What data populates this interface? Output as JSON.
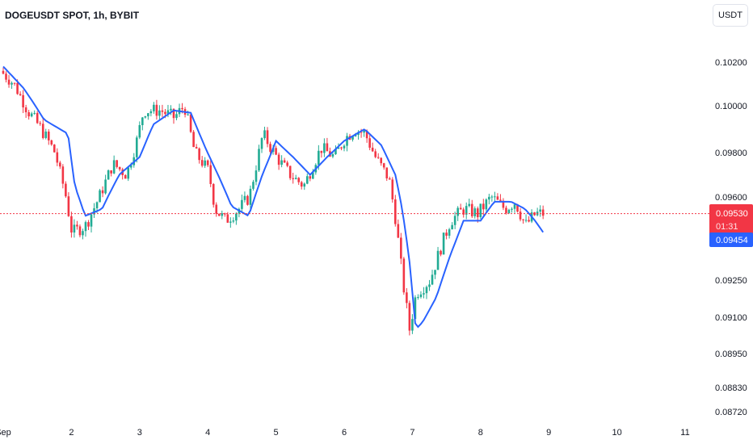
{
  "header": {
    "title": "DOGEUSDT SPOT, 1h, BYBIT",
    "currency_button": "USDT"
  },
  "colors": {
    "up": "#22ab94",
    "down": "#f23645",
    "ma": "#2962ff",
    "price_line": "#f23645",
    "ma_tag": "#2962ff"
  },
  "chart_data": {
    "type": "candlestick",
    "symbol": "DOGEUSDT SPOT",
    "interval": "1h",
    "exchange": "BYBIT",
    "price_axis_ticks": [
      "0.10200",
      "0.10000",
      "0.09800",
      "0.09600",
      "0.09250",
      "0.09100",
      "0.08950",
      "0.08830",
      "0.08720"
    ],
    "price_axis_values": [
      0.102,
      0.1,
      0.098,
      0.096,
      0.0925,
      0.091,
      0.0895,
      0.0883,
      0.0872
    ],
    "time_axis_ticks": [
      {
        "label": "Sep",
        "day": 1
      },
      {
        "label": "2",
        "day": 2
      },
      {
        "label": "3",
        "day": 3
      },
      {
        "label": "4",
        "day": 4
      },
      {
        "label": "5",
        "day": 5
      },
      {
        "label": "6",
        "day": 6
      },
      {
        "label": "7",
        "day": 7
      },
      {
        "label": "8",
        "day": 8
      },
      {
        "label": "9",
        "day": 9
      },
      {
        "label": "10",
        "day": 10
      },
      {
        "label": "11",
        "day": 11
      }
    ],
    "last_price": {
      "value": "0.09530",
      "countdown": "01:31"
    },
    "moving_average": {
      "value": "0.09454"
    },
    "price_path": [
      [
        1.0,
        0.1016
      ],
      [
        1.2,
        0.101
      ],
      [
        1.4,
        0.0998
      ],
      [
        1.6,
        0.099
      ],
      [
        1.8,
        0.098
      ],
      [
        1.95,
        0.0962
      ],
      [
        2.05,
        0.0945
      ],
      [
        2.25,
        0.0948
      ],
      [
        2.45,
        0.096
      ],
      [
        2.65,
        0.0975
      ],
      [
        2.85,
        0.097
      ],
      [
        3.0,
        0.0985
      ],
      [
        3.1,
        0.0998
      ],
      [
        3.35,
        0.0998
      ],
      [
        3.55,
        0.0995
      ],
      [
        3.7,
        0.1
      ],
      [
        3.85,
        0.098
      ],
      [
        4.05,
        0.0972
      ],
      [
        4.15,
        0.0955
      ],
      [
        4.3,
        0.095
      ],
      [
        4.5,
        0.0955
      ],
      [
        4.65,
        0.096
      ],
      [
        4.85,
        0.0988
      ],
      [
        5.05,
        0.0978
      ],
      [
        5.25,
        0.097
      ],
      [
        5.45,
        0.0965
      ],
      [
        5.7,
        0.0982
      ],
      [
        5.9,
        0.0978
      ],
      [
        6.05,
        0.0986
      ],
      [
        6.2,
        0.099
      ],
      [
        6.35,
        0.0988
      ],
      [
        6.5,
        0.0978
      ],
      [
        6.7,
        0.0968
      ],
      [
        6.8,
        0.095
      ],
      [
        6.9,
        0.0925
      ],
      [
        7.0,
        0.0905
      ],
      [
        7.1,
        0.092
      ],
      [
        7.3,
        0.0925
      ],
      [
        7.45,
        0.0938
      ],
      [
        7.6,
        0.095
      ],
      [
        7.8,
        0.0955
      ],
      [
        8.0,
        0.0953
      ],
      [
        8.2,
        0.096
      ],
      [
        8.4,
        0.0955
      ],
      [
        8.55,
        0.0958
      ],
      [
        8.7,
        0.0948
      ],
      [
        8.85,
        0.0953
      ]
    ],
    "ma_path": [
      [
        1.0,
        0.1018
      ],
      [
        1.3,
        0.1008
      ],
      [
        1.6,
        0.0994
      ],
      [
        1.95,
        0.0988
      ],
      [
        2.05,
        0.0965
      ],
      [
        2.2,
        0.0952
      ],
      [
        2.45,
        0.0955
      ],
      [
        2.7,
        0.097
      ],
      [
        3.0,
        0.0978
      ],
      [
        3.2,
        0.0992
      ],
      [
        3.5,
        0.0998
      ],
      [
        3.75,
        0.0997
      ],
      [
        3.95,
        0.0983
      ],
      [
        4.15,
        0.097
      ],
      [
        4.35,
        0.0956
      ],
      [
        4.6,
        0.0952
      ],
      [
        4.8,
        0.097
      ],
      [
        5.0,
        0.0985
      ],
      [
        5.25,
        0.0978
      ],
      [
        5.5,
        0.097
      ],
      [
        5.75,
        0.0978
      ],
      [
        6.0,
        0.0985
      ],
      [
        6.3,
        0.099
      ],
      [
        6.55,
        0.0983
      ],
      [
        6.75,
        0.097
      ],
      [
        6.85,
        0.0955
      ],
      [
        6.95,
        0.0935
      ],
      [
        7.05,
        0.0905
      ],
      [
        7.15,
        0.0908
      ],
      [
        7.35,
        0.0918
      ],
      [
        7.55,
        0.0935
      ],
      [
        7.75,
        0.095
      ],
      [
        8.0,
        0.095
      ],
      [
        8.2,
        0.0958
      ],
      [
        8.45,
        0.0958
      ],
      [
        8.65,
        0.0955
      ],
      [
        8.8,
        0.095
      ],
      [
        8.92,
        0.0945
      ]
    ]
  }
}
